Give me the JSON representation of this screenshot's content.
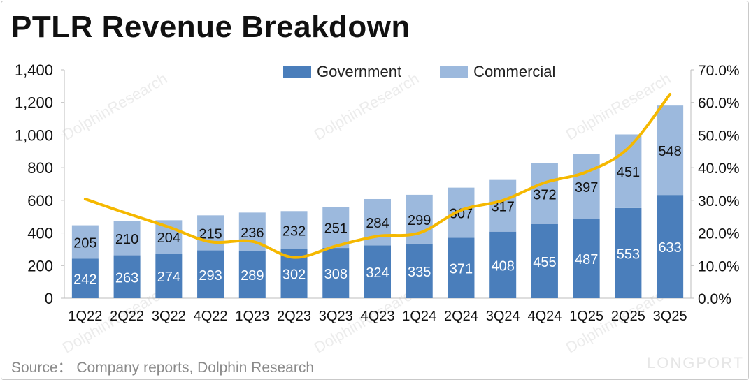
{
  "title": "PTLR Revenue Breakdown",
  "source": "Source： Company reports, Dolphin Research",
  "watermark": "DolphinResearch",
  "watermark_logo": "LONGPORT",
  "colors": {
    "government": "#4a7ebb",
    "commercial": "#9cb9dd",
    "line": "#f5b800"
  },
  "chart_data": {
    "type": "bar",
    "stacked": true,
    "categories": [
      "1Q22",
      "2Q22",
      "3Q22",
      "4Q22",
      "1Q23",
      "2Q23",
      "3Q23",
      "4Q23",
      "1Q24",
      "2Q24",
      "3Q24",
      "4Q24",
      "1Q25",
      "2Q25",
      "3Q25"
    ],
    "series": [
      {
        "name": "Government",
        "values": [
          242,
          263,
          274,
          293,
          289,
          302,
          308,
          324,
          335,
          371,
          408,
          455,
          487,
          553,
          633
        ]
      },
      {
        "name": "Commercial",
        "values": [
          205,
          210,
          204,
          215,
          236,
          232,
          251,
          284,
          299,
          307,
          317,
          372,
          397,
          451,
          548
        ]
      }
    ],
    "line_series": {
      "axis": "right",
      "values": [
        30.4,
        26.0,
        21.8,
        17.3,
        17.4,
        12.5,
        16.0,
        19.0,
        20.0,
        27.0,
        30.0,
        35.4,
        38.7,
        46.0,
        62.5
      ]
    },
    "ylim": [
      0,
      1400
    ],
    "y_ticks": [
      "0",
      "200",
      "400",
      "600",
      "800",
      "1,000",
      "1,200",
      "1,400"
    ],
    "y2lim": [
      0,
      70
    ],
    "y2_ticks": [
      "0.0%",
      "10.0%",
      "20.0%",
      "30.0%",
      "40.0%",
      "50.0%",
      "60.0%",
      "70.0%"
    ],
    "legend_position": "top",
    "grid": false
  }
}
